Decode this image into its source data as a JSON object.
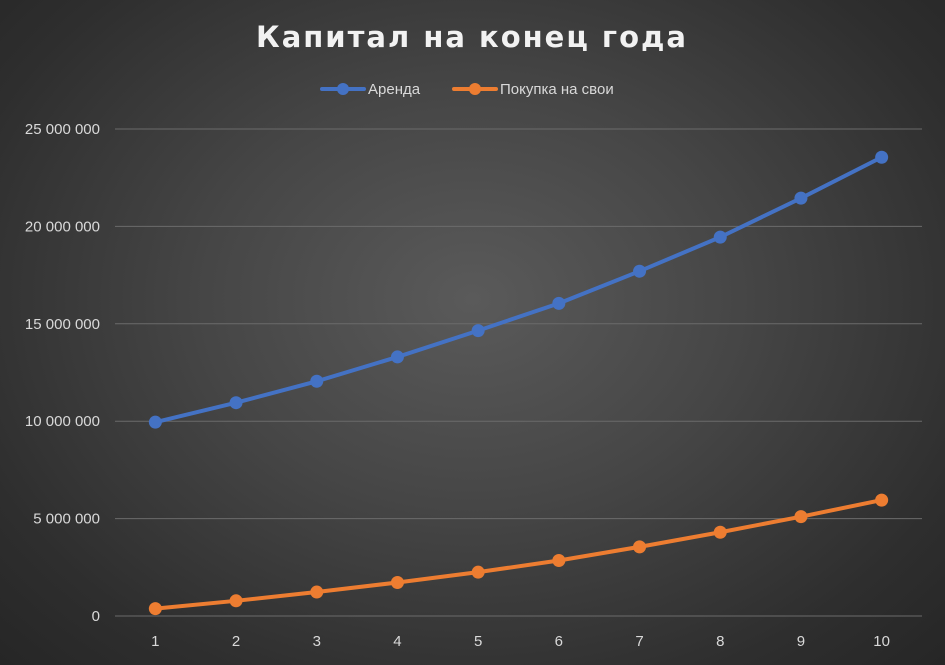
{
  "chart_data": {
    "type": "line",
    "title": "Капитал на конец года",
    "categories": [
      "1",
      "2",
      "3",
      "4",
      "5",
      "6",
      "7",
      "8",
      "9",
      "10"
    ],
    "series": [
      {
        "name": "Аренда",
        "color": "#4472c4",
        "values": [
          9950000,
          10950000,
          12050000,
          13300000,
          14650000,
          16050000,
          17700000,
          19450000,
          21450000,
          23550000
        ]
      },
      {
        "name": "Покупка на свои",
        "color": "#ed7d31",
        "values": [
          380000,
          780000,
          1230000,
          1720000,
          2250000,
          2850000,
          3550000,
          4300000,
          5100000,
          5950000
        ]
      }
    ],
    "yticks": [
      "0",
      "5 000 000",
      "10 000 000",
      "15 000 000",
      "20 000 000",
      "25 000 000"
    ],
    "ylim": [
      0,
      25000000
    ],
    "grid": true,
    "legend": "top-center",
    "xlabel": "",
    "ylabel": ""
  }
}
